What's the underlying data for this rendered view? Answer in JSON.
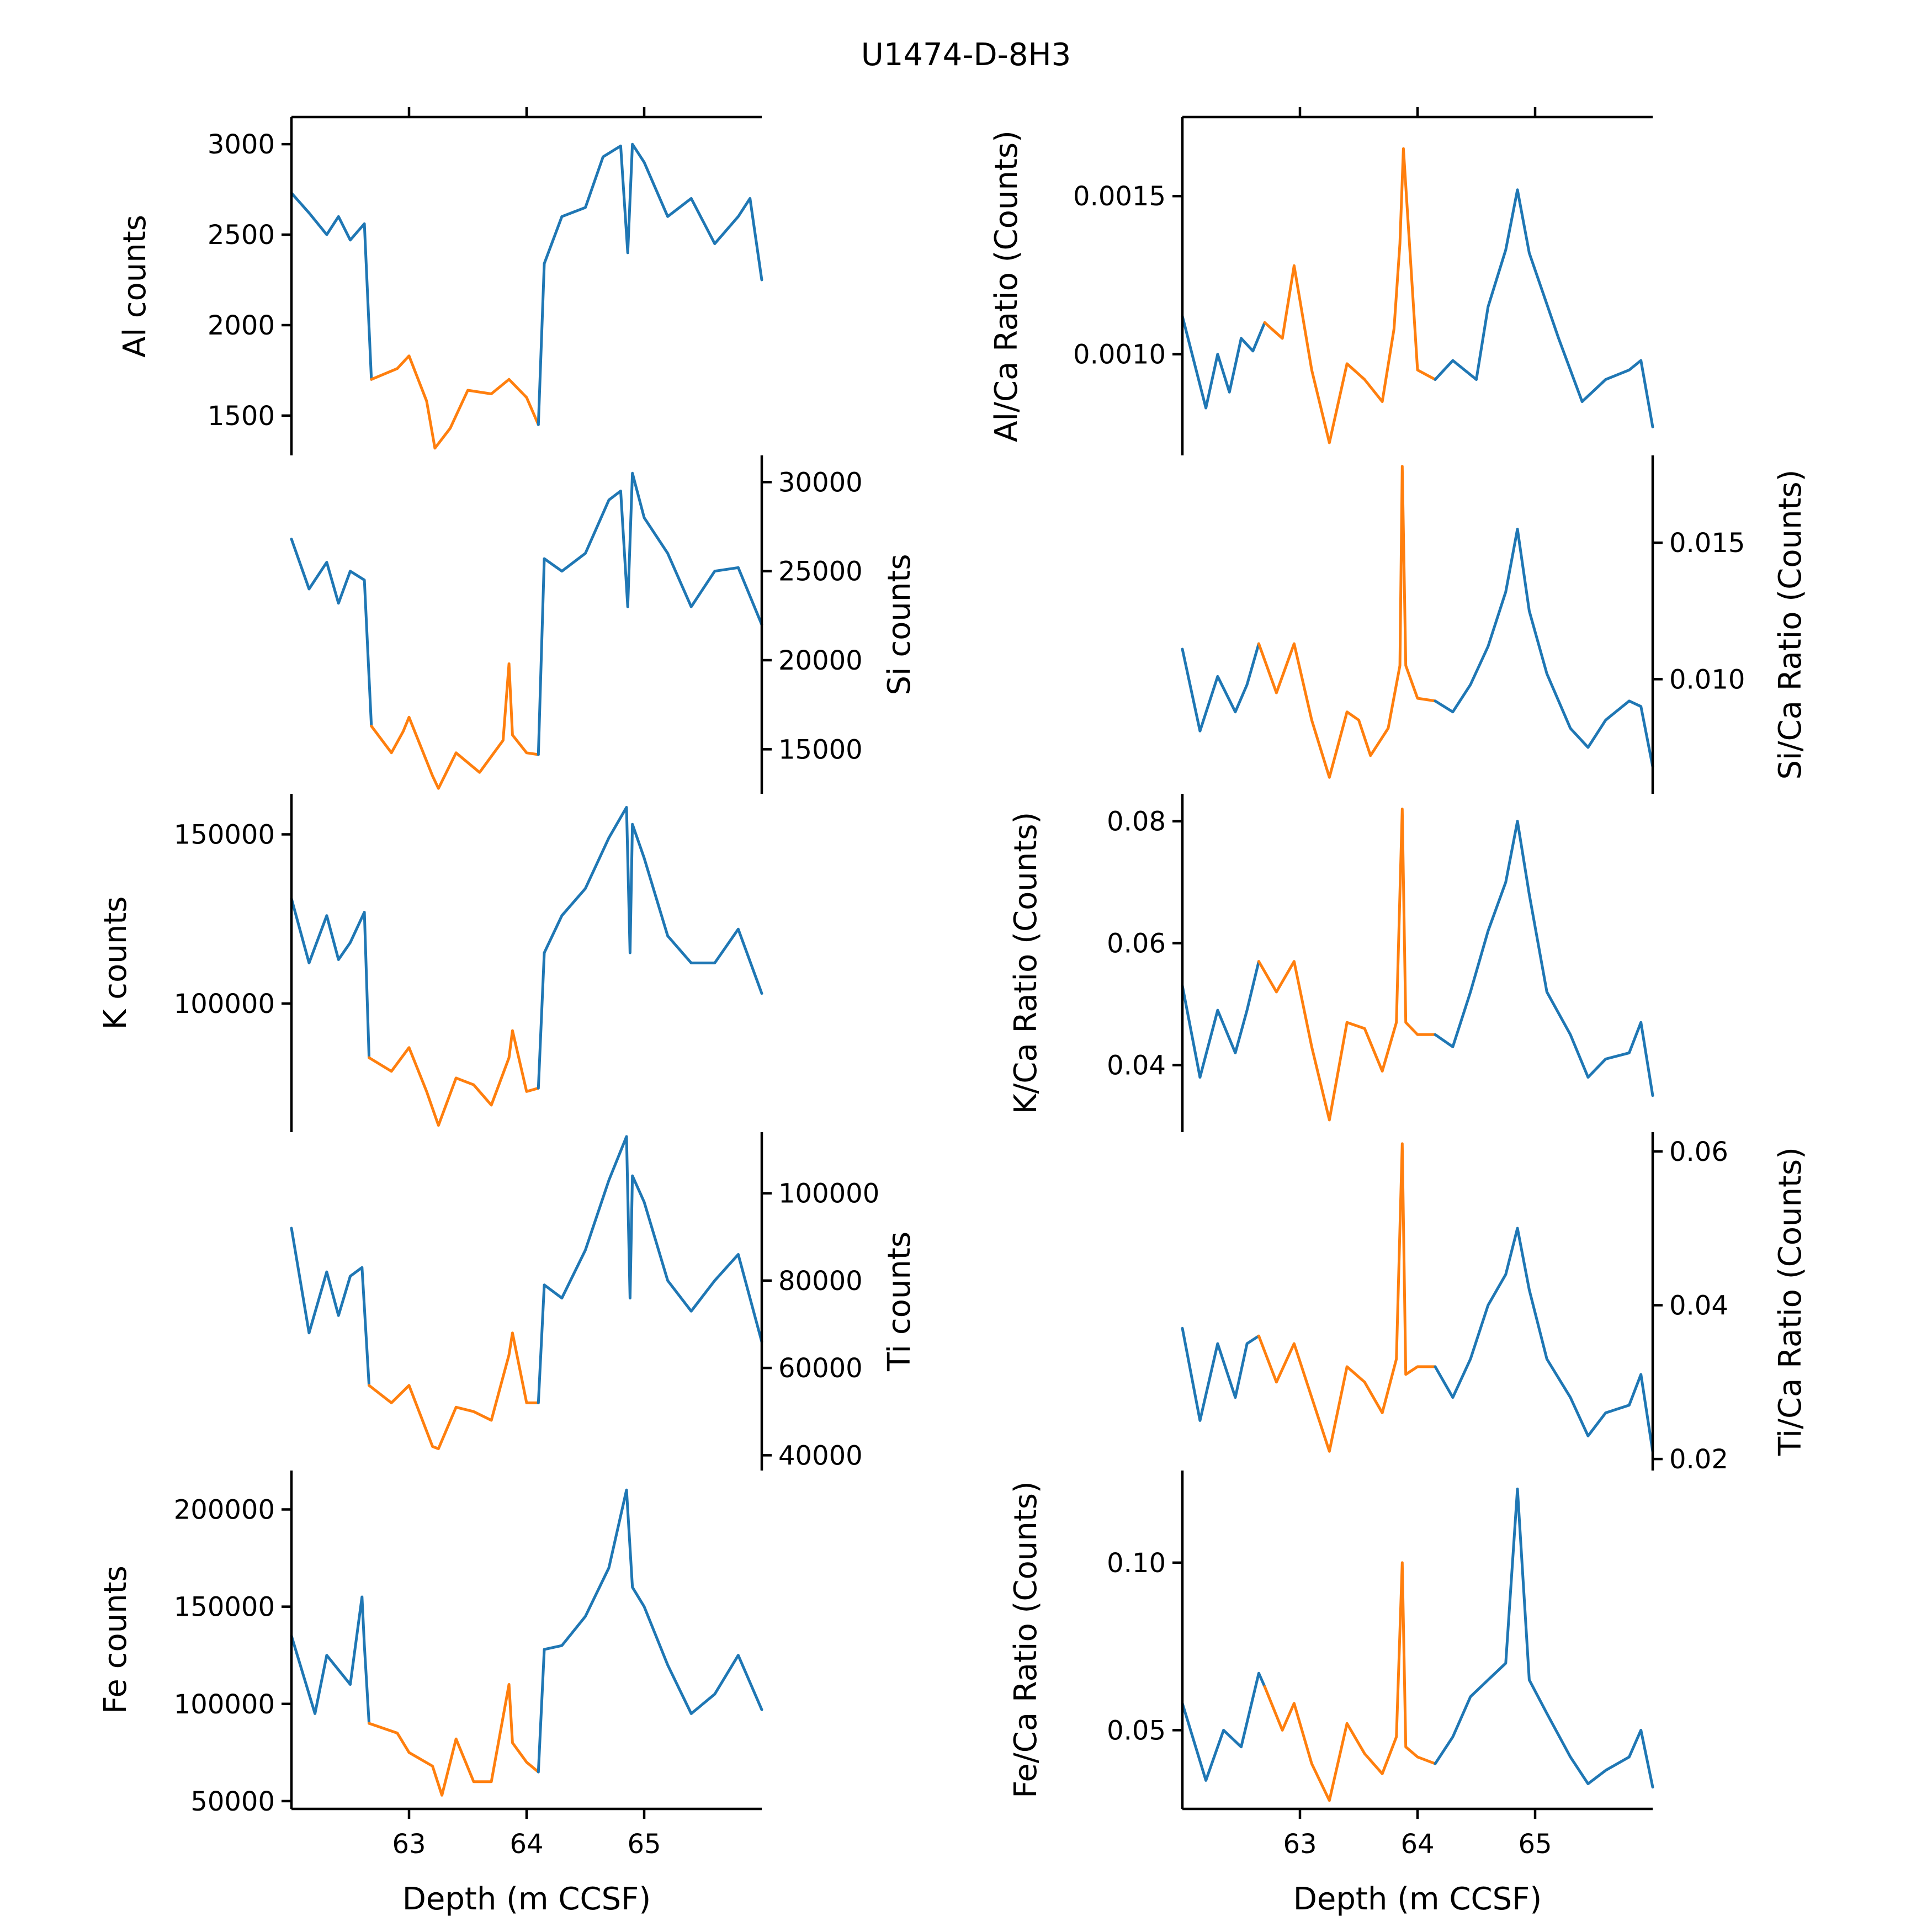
{
  "figure_title": "U1474-D-8H3",
  "colors": {
    "baseline": "#1f77b4",
    "highlight": "#ff7f0e"
  },
  "chart_data": [
    {
      "type": "line",
      "ylabel": "Al counts",
      "xlabel": "",
      "ylim": [
        1280,
        3150
      ],
      "yticks": [
        "1500",
        "2000",
        "2500",
        "3000"
      ],
      "xlim": [
        62.0,
        66.0
      ],
      "xticks": [],
      "ytick_side": "left",
      "xtick_side": "top",
      "series": [
        {
          "role": "baseline",
          "x": [
            62.0,
            62.15,
            62.3,
            62.4,
            62.5,
            62.62,
            62.68
          ],
          "y": [
            2730,
            2620,
            2500,
            2600,
            2470,
            2560,
            1700
          ]
        },
        {
          "role": "highlight",
          "x": [
            62.68,
            62.9,
            63.0,
            63.15,
            63.22,
            63.35,
            63.5,
            63.7,
            63.85,
            64.0,
            64.1
          ],
          "y": [
            1700,
            1760,
            1830,
            1580,
            1320,
            1430,
            1640,
            1620,
            1700,
            1600,
            1450
          ]
        },
        {
          "role": "baseline",
          "x": [
            64.1,
            64.15,
            64.3,
            64.5,
            64.65,
            64.8,
            64.86,
            64.9,
            65.0,
            65.2,
            65.4,
            65.6,
            65.8,
            65.9,
            66.0
          ],
          "y": [
            1450,
            2340,
            2600,
            2650,
            2930,
            2990,
            2400,
            3000,
            2900,
            2600,
            2700,
            2450,
            2600,
            2700,
            2250
          ]
        }
      ]
    },
    {
      "type": "line",
      "ylabel": "Si counts",
      "xlabel": "",
      "ylim": [
        12500,
        31500
      ],
      "yticks": [
        "15000",
        "20000",
        "25000",
        "30000"
      ],
      "xlim": [
        62.0,
        66.0
      ],
      "xticks": [],
      "ytick_side": "right",
      "xtick_side": "none",
      "series": [
        {
          "role": "baseline",
          "x": [
            62.0,
            62.15,
            62.3,
            62.4,
            62.5,
            62.62,
            62.68
          ],
          "y": [
            26800,
            24000,
            25500,
            23200,
            25000,
            24500,
            16300
          ]
        },
        {
          "role": "highlight",
          "x": [
            62.68,
            62.85,
            62.95,
            63.0,
            63.2,
            63.25,
            63.4,
            63.6,
            63.8,
            63.85,
            63.88,
            64.0,
            64.1
          ],
          "y": [
            16300,
            14800,
            16000,
            16800,
            13500,
            12800,
            14800,
            13700,
            15500,
            19800,
            15800,
            14800,
            14700
          ]
        },
        {
          "role": "baseline",
          "x": [
            64.1,
            64.15,
            64.3,
            64.5,
            64.7,
            64.8,
            64.86,
            64.9,
            65.0,
            65.2,
            65.4,
            65.6,
            65.8,
            66.0
          ],
          "y": [
            14700,
            25700,
            25000,
            26000,
            29000,
            29500,
            23000,
            30500,
            28000,
            26000,
            23000,
            25000,
            25200,
            22000
          ]
        }
      ]
    },
    {
      "type": "line",
      "ylabel": "K counts",
      "xlabel": "",
      "ylim": [
        62000,
        162000
      ],
      "yticks": [
        "100000",
        "150000"
      ],
      "xlim": [
        62.0,
        66.0
      ],
      "xticks": [],
      "ytick_side": "left",
      "xtick_side": "none",
      "series": [
        {
          "role": "baseline",
          "x": [
            62.0,
            62.15,
            62.3,
            62.4,
            62.5,
            62.62,
            62.66
          ],
          "y": [
            131000,
            112000,
            126000,
            113000,
            118000,
            127000,
            84000
          ]
        },
        {
          "role": "highlight",
          "x": [
            62.66,
            62.85,
            63.0,
            63.15,
            63.25,
            63.4,
            63.55,
            63.7,
            63.85,
            63.88,
            64.0,
            64.1
          ],
          "y": [
            84000,
            80000,
            87000,
            74000,
            64000,
            78000,
            76000,
            70000,
            84000,
            92000,
            74000,
            75000
          ]
        },
        {
          "role": "baseline",
          "x": [
            64.1,
            64.15,
            64.3,
            64.5,
            64.7,
            64.85,
            64.88,
            64.9,
            65.0,
            65.2,
            65.4,
            65.6,
            65.8,
            66.0
          ],
          "y": [
            75000,
            115000,
            126000,
            134000,
            149000,
            158000,
            115000,
            153000,
            143000,
            120000,
            112000,
            112000,
            122000,
            103000
          ]
        }
      ]
    },
    {
      "type": "line",
      "ylabel": "Ti counts",
      "xlabel": "",
      "ylim": [
        36500,
        114000
      ],
      "yticks": [
        "40000",
        "60000",
        "80000",
        "100000"
      ],
      "xlim": [
        62.0,
        66.0
      ],
      "xticks": [],
      "ytick_side": "right",
      "xtick_side": "none",
      "series": [
        {
          "role": "baseline",
          "x": [
            62.0,
            62.15,
            62.3,
            62.4,
            62.5,
            62.6,
            62.66
          ],
          "y": [
            92000,
            68000,
            82000,
            72000,
            81000,
            83000,
            56000
          ]
        },
        {
          "role": "highlight",
          "x": [
            62.66,
            62.85,
            63.0,
            63.2,
            63.25,
            63.4,
            63.55,
            63.7,
            63.85,
            63.88,
            64.0,
            64.1
          ],
          "y": [
            56000,
            52000,
            56000,
            42000,
            41500,
            51000,
            50000,
            48000,
            63000,
            68000,
            52000,
            52000
          ]
        },
        {
          "role": "baseline",
          "x": [
            64.1,
            64.15,
            64.3,
            64.5,
            64.7,
            64.85,
            64.88,
            64.9,
            65.0,
            65.2,
            65.4,
            65.6,
            65.8,
            66.0
          ],
          "y": [
            52000,
            79000,
            76000,
            87000,
            103000,
            113000,
            76000,
            104000,
            98000,
            80000,
            73000,
            80000,
            86000,
            66000
          ]
        }
      ]
    },
    {
      "type": "line",
      "ylabel": "Fe counts",
      "xlabel": "Depth (m CCSF)",
      "ylim": [
        46000,
        220000
      ],
      "yticks": [
        "50000",
        "100000",
        "150000",
        "200000"
      ],
      "xlim": [
        62.0,
        66.0
      ],
      "xticks": [
        "63",
        "64",
        "65"
      ],
      "ytick_side": "left",
      "xtick_side": "bottom",
      "series": [
        {
          "role": "baseline",
          "x": [
            62.0,
            62.2,
            62.3,
            62.5,
            62.6,
            62.62,
            62.66
          ],
          "y": [
            135000,
            95000,
            125000,
            110000,
            155000,
            130000,
            90000
          ]
        },
        {
          "role": "highlight",
          "x": [
            62.66,
            62.9,
            63.0,
            63.2,
            63.28,
            63.4,
            63.55,
            63.7,
            63.85,
            63.88,
            64.0,
            64.1
          ],
          "y": [
            90000,
            85000,
            75000,
            68000,
            53000,
            82000,
            60000,
            60000,
            110000,
            80000,
            70000,
            65000
          ]
        },
        {
          "role": "baseline",
          "x": [
            64.1,
            64.15,
            64.3,
            64.5,
            64.7,
            64.85,
            64.9,
            65.0,
            65.2,
            65.4,
            65.6,
            65.8,
            66.0
          ],
          "y": [
            65000,
            128000,
            130000,
            145000,
            170000,
            210000,
            160000,
            150000,
            120000,
            95000,
            105000,
            125000,
            97000
          ]
        }
      ]
    },
    {
      "type": "line",
      "ylabel": "Al/Ca Ratio (Counts)",
      "xlabel": "",
      "ylim": [
        0.00068,
        0.00175
      ],
      "yticks": [
        "0.0010",
        "0.0015"
      ],
      "xlim": [
        62.0,
        66.0
      ],
      "xticks": [],
      "ytick_side": "left",
      "xtick_side": "top",
      "series": [
        {
          "role": "baseline",
          "x": [
            62.0,
            62.2,
            62.3,
            62.4,
            62.5,
            62.6,
            62.7
          ],
          "y": [
            0.00112,
            0.00083,
            0.001,
            0.00088,
            0.00105,
            0.00101,
            0.0011
          ]
        },
        {
          "role": "highlight",
          "x": [
            62.7,
            62.85,
            62.95,
            63.1,
            63.25,
            63.4,
            63.55,
            63.7,
            63.8,
            63.85,
            63.88,
            64.0,
            64.15
          ],
          "y": [
            0.0011,
            0.00105,
            0.00128,
            0.00095,
            0.00072,
            0.00097,
            0.00092,
            0.00085,
            0.00108,
            0.00135,
            0.00165,
            0.00095,
            0.00092
          ]
        },
        {
          "role": "baseline",
          "x": [
            64.15,
            64.3,
            64.5,
            64.6,
            64.75,
            64.85,
            64.95,
            65.2,
            65.4,
            65.6,
            65.8,
            65.9,
            66.0
          ],
          "y": [
            0.00092,
            0.00098,
            0.00092,
            0.00115,
            0.00133,
            0.00152,
            0.00132,
            0.00105,
            0.00085,
            0.00092,
            0.00095,
            0.00098,
            0.00077
          ]
        }
      ]
    },
    {
      "type": "line",
      "ylabel": "Si/Ca Ratio (Counts)",
      "xlabel": "",
      "ylim": [
        0.0058,
        0.0182
      ],
      "yticks": [
        "0.010",
        "0.015"
      ],
      "xlim": [
        62.0,
        66.0
      ],
      "xticks": [],
      "ytick_side": "right",
      "xtick_side": "none",
      "series": [
        {
          "role": "baseline",
          "x": [
            62.0,
            62.15,
            62.3,
            62.45,
            62.55,
            62.65
          ],
          "y": [
            0.0111,
            0.0081,
            0.0101,
            0.0088,
            0.0098,
            0.0113
          ]
        },
        {
          "role": "highlight",
          "x": [
            62.65,
            62.8,
            62.95,
            63.1,
            63.25,
            63.4,
            63.5,
            63.6,
            63.75,
            63.85,
            63.87,
            63.9,
            64.0,
            64.15
          ],
          "y": [
            0.0113,
            0.0095,
            0.0113,
            0.0085,
            0.0064,
            0.0088,
            0.0085,
            0.0072,
            0.0082,
            0.0105,
            0.0178,
            0.0105,
            0.0093,
            0.0092
          ]
        },
        {
          "role": "baseline",
          "x": [
            64.15,
            64.3,
            64.45,
            64.6,
            64.75,
            64.85,
            64.95,
            65.1,
            65.3,
            65.45,
            65.6,
            65.8,
            65.9,
            66.0
          ],
          "y": [
            0.0092,
            0.0088,
            0.0098,
            0.0112,
            0.0132,
            0.0155,
            0.0125,
            0.0102,
            0.0082,
            0.0075,
            0.0085,
            0.0092,
            0.009,
            0.0068
          ]
        }
      ]
    },
    {
      "type": "line",
      "ylabel": "K/Ca Ratio (Counts)",
      "xlabel": "",
      "ylim": [
        0.029,
        0.0845
      ],
      "yticks": [
        "0.04",
        "0.06",
        "0.08"
      ],
      "xlim": [
        62.0,
        66.0
      ],
      "xticks": [],
      "ytick_side": "left",
      "xtick_side": "none",
      "series": [
        {
          "role": "baseline",
          "x": [
            62.0,
            62.15,
            62.3,
            62.45,
            62.55,
            62.65
          ],
          "y": [
            0.053,
            0.038,
            0.049,
            0.042,
            0.049,
            0.057
          ]
        },
        {
          "role": "highlight",
          "x": [
            62.65,
            62.8,
            62.95,
            63.1,
            63.25,
            63.4,
            63.55,
            63.7,
            63.82,
            63.87,
            63.9,
            64.0,
            64.15
          ],
          "y": [
            0.057,
            0.052,
            0.057,
            0.043,
            0.031,
            0.047,
            0.046,
            0.039,
            0.047,
            0.082,
            0.047,
            0.045,
            0.045
          ]
        },
        {
          "role": "baseline",
          "x": [
            64.15,
            64.3,
            64.45,
            64.6,
            64.75,
            64.85,
            64.95,
            65.1,
            65.3,
            65.45,
            65.6,
            65.8,
            65.9,
            66.0
          ],
          "y": [
            0.045,
            0.043,
            0.052,
            0.062,
            0.07,
            0.08,
            0.068,
            0.052,
            0.045,
            0.038,
            0.041,
            0.042,
            0.047,
            0.035
          ]
        }
      ]
    },
    {
      "type": "line",
      "ylabel": "Ti/Ca Ratio (Counts)",
      "xlabel": "",
      "ylim": [
        0.0185,
        0.0625
      ],
      "yticks": [
        "0.02",
        "0.04",
        "0.06"
      ],
      "xlim": [
        62.0,
        66.0
      ],
      "xticks": [],
      "ytick_side": "right",
      "xtick_side": "none",
      "series": [
        {
          "role": "baseline",
          "x": [
            62.0,
            62.15,
            62.3,
            62.45,
            62.55,
            62.65
          ],
          "y": [
            0.037,
            0.025,
            0.035,
            0.028,
            0.035,
            0.036
          ]
        },
        {
          "role": "highlight",
          "x": [
            62.65,
            62.8,
            62.95,
            63.1,
            63.25,
            63.4,
            63.55,
            63.7,
            63.82,
            63.87,
            63.9,
            64.0,
            64.15
          ],
          "y": [
            0.036,
            0.03,
            0.035,
            0.028,
            0.021,
            0.032,
            0.03,
            0.026,
            0.033,
            0.061,
            0.031,
            0.032,
            0.032
          ]
        },
        {
          "role": "baseline",
          "x": [
            64.15,
            64.3,
            64.45,
            64.6,
            64.75,
            64.85,
            64.95,
            65.1,
            65.3,
            65.45,
            65.6,
            65.8,
            65.9,
            66.0
          ],
          "y": [
            0.032,
            0.028,
            0.033,
            0.04,
            0.044,
            0.05,
            0.042,
            0.033,
            0.028,
            0.023,
            0.026,
            0.027,
            0.031,
            0.021
          ]
        }
      ]
    },
    {
      "type": "line",
      "ylabel": "Fe/Ca Ratio (Counts)",
      "xlabel": "Depth (m CCSF)",
      "ylim": [
        0.0265,
        0.1275
      ],
      "yticks": [
        "0.05",
        "0.10"
      ],
      "xlim": [
        62.0,
        66.0
      ],
      "xticks": [
        "63",
        "64",
        "65"
      ],
      "ytick_side": "left",
      "xtick_side": "bottom",
      "series": [
        {
          "role": "baseline",
          "x": [
            62.0,
            62.2,
            62.35,
            62.5,
            62.65,
            62.7
          ],
          "y": [
            0.058,
            0.035,
            0.05,
            0.045,
            0.067,
            0.063
          ]
        },
        {
          "role": "highlight",
          "x": [
            62.7,
            62.85,
            62.95,
            63.1,
            63.25,
            63.4,
            63.55,
            63.7,
            63.82,
            63.87,
            63.9,
            64.0,
            64.15
          ],
          "y": [
            0.063,
            0.05,
            0.058,
            0.04,
            0.029,
            0.052,
            0.043,
            0.037,
            0.048,
            0.1,
            0.045,
            0.042,
            0.04
          ]
        },
        {
          "role": "baseline",
          "x": [
            64.15,
            64.3,
            64.45,
            64.6,
            64.75,
            64.85,
            64.95,
            65.1,
            65.3,
            65.45,
            65.6,
            65.8,
            65.9,
            66.0
          ],
          "y": [
            0.04,
            0.048,
            0.06,
            0.065,
            0.07,
            0.122,
            0.065,
            0.055,
            0.042,
            0.034,
            0.038,
            0.042,
            0.05,
            0.033
          ]
        }
      ]
    }
  ]
}
